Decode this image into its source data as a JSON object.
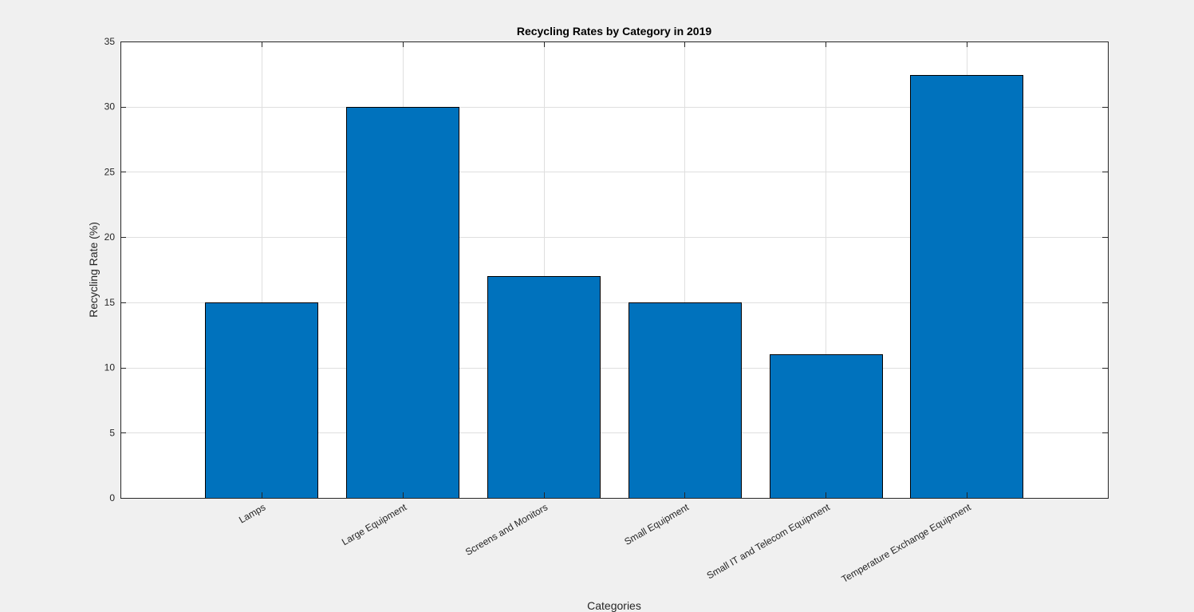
{
  "chart_data": {
    "type": "bar",
    "title": "Recycling Rates by Category in 2019",
    "xlabel": "Categories",
    "ylabel": "Recycling Rate (%)",
    "categories": [
      "Lamps",
      "Large Equipment",
      "Screens and Monitors",
      "Small Equipment",
      "Small IT and Telecom Equipment",
      "Temperature Exchange Equipment"
    ],
    "values": [
      15,
      30,
      17,
      15,
      11,
      32.4
    ],
    "ylim": [
      0,
      35
    ],
    "yticks": [
      0,
      5,
      10,
      15,
      20,
      25,
      30,
      35
    ],
    "ytick_labels": [
      "0",
      "5",
      "10",
      "15",
      "20",
      "25",
      "30",
      "35"
    ],
    "grid": true,
    "legend": "none",
    "bar_color": "#0072bd",
    "bar_edge_color": "#000000",
    "axes_background": "#ffffff",
    "figure_background": "#f0f0f0",
    "grid_color": "#dfdfdf"
  }
}
